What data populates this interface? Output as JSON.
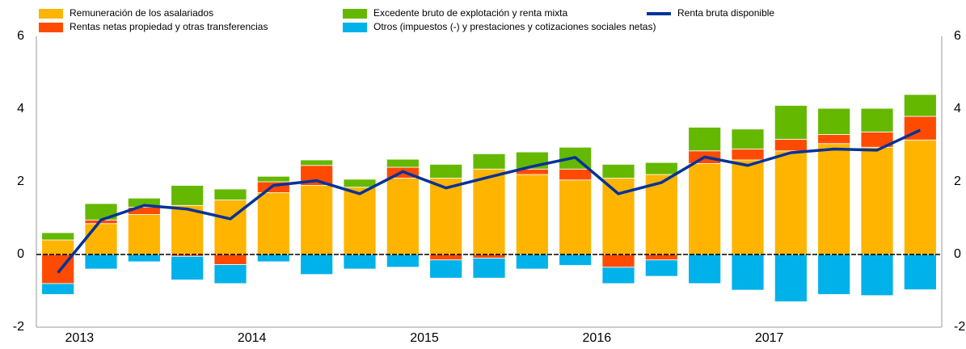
{
  "chart_data": {
    "type": "stacked_bar_line",
    "categories": [
      null,
      "2013",
      null,
      null,
      null,
      "2014",
      null,
      null,
      null,
      "2015",
      null,
      null,
      null,
      "2016",
      null,
      null,
      null,
      "2017",
      null,
      null,
      null
    ],
    "series": [
      {
        "name": "Remuneración de los asalariados",
        "color": "#ffb400",
        "values": [
          0.4,
          0.85,
          1.1,
          1.35,
          1.5,
          1.7,
          1.9,
          1.85,
          2.1,
          2.1,
          2.35,
          2.2,
          2.05,
          2.1,
          2.2,
          2.5,
          2.6,
          2.85,
          3.05,
          2.95,
          3.15
        ]
      },
      {
        "name": "Rentas netas propiedad y otras transferencias",
        "color": "#ff4b00",
        "values": [
          -0.8,
          0.1,
          0.2,
          -0.05,
          -0.28,
          0.3,
          0.55,
          0,
          0.3,
          -0.15,
          -0.1,
          0.15,
          0.3,
          -0.35,
          -0.15,
          0.35,
          0.3,
          0.32,
          0.25,
          0.42,
          0.65
        ]
      },
      {
        "name": "Excedente bruto de explotación y renta mixta",
        "color": "#65b800",
        "values": [
          0.2,
          0.45,
          0.25,
          0.55,
          0.3,
          0.15,
          0.15,
          0.22,
          0.22,
          0.38,
          0.42,
          0.47,
          0.6,
          0.38,
          0.33,
          0.65,
          0.55,
          0.93,
          0.72,
          0.65,
          0.6
        ]
      },
      {
        "name": "Otros (impuestos (-) y prestaciones y cotizaciones sociales netas)",
        "color": "#00b1ea",
        "values": [
          -0.3,
          -0.4,
          -0.2,
          -0.65,
          -0.52,
          -0.2,
          -0.55,
          -0.4,
          -0.35,
          -0.5,
          -0.55,
          -0.4,
          -0.3,
          -0.45,
          -0.45,
          -0.8,
          -0.98,
          -1.3,
          -1.1,
          -1.13,
          -0.97
        ]
      },
      {
        "name": "Renta bruta disponible",
        "color": "#003299",
        "kind": "line",
        "values": [
          -0.5,
          0.95,
          1.35,
          1.25,
          0.98,
          1.9,
          2.03,
          1.67,
          2.28,
          1.83,
          2.13,
          2.42,
          2.67,
          1.67,
          1.98,
          2.68,
          2.45,
          2.8,
          2.9,
          2.87,
          3.42
        ]
      }
    ],
    "ylim": [
      -2,
      6
    ],
    "yticks": [
      -2,
      0,
      2,
      4,
      6
    ]
  }
}
